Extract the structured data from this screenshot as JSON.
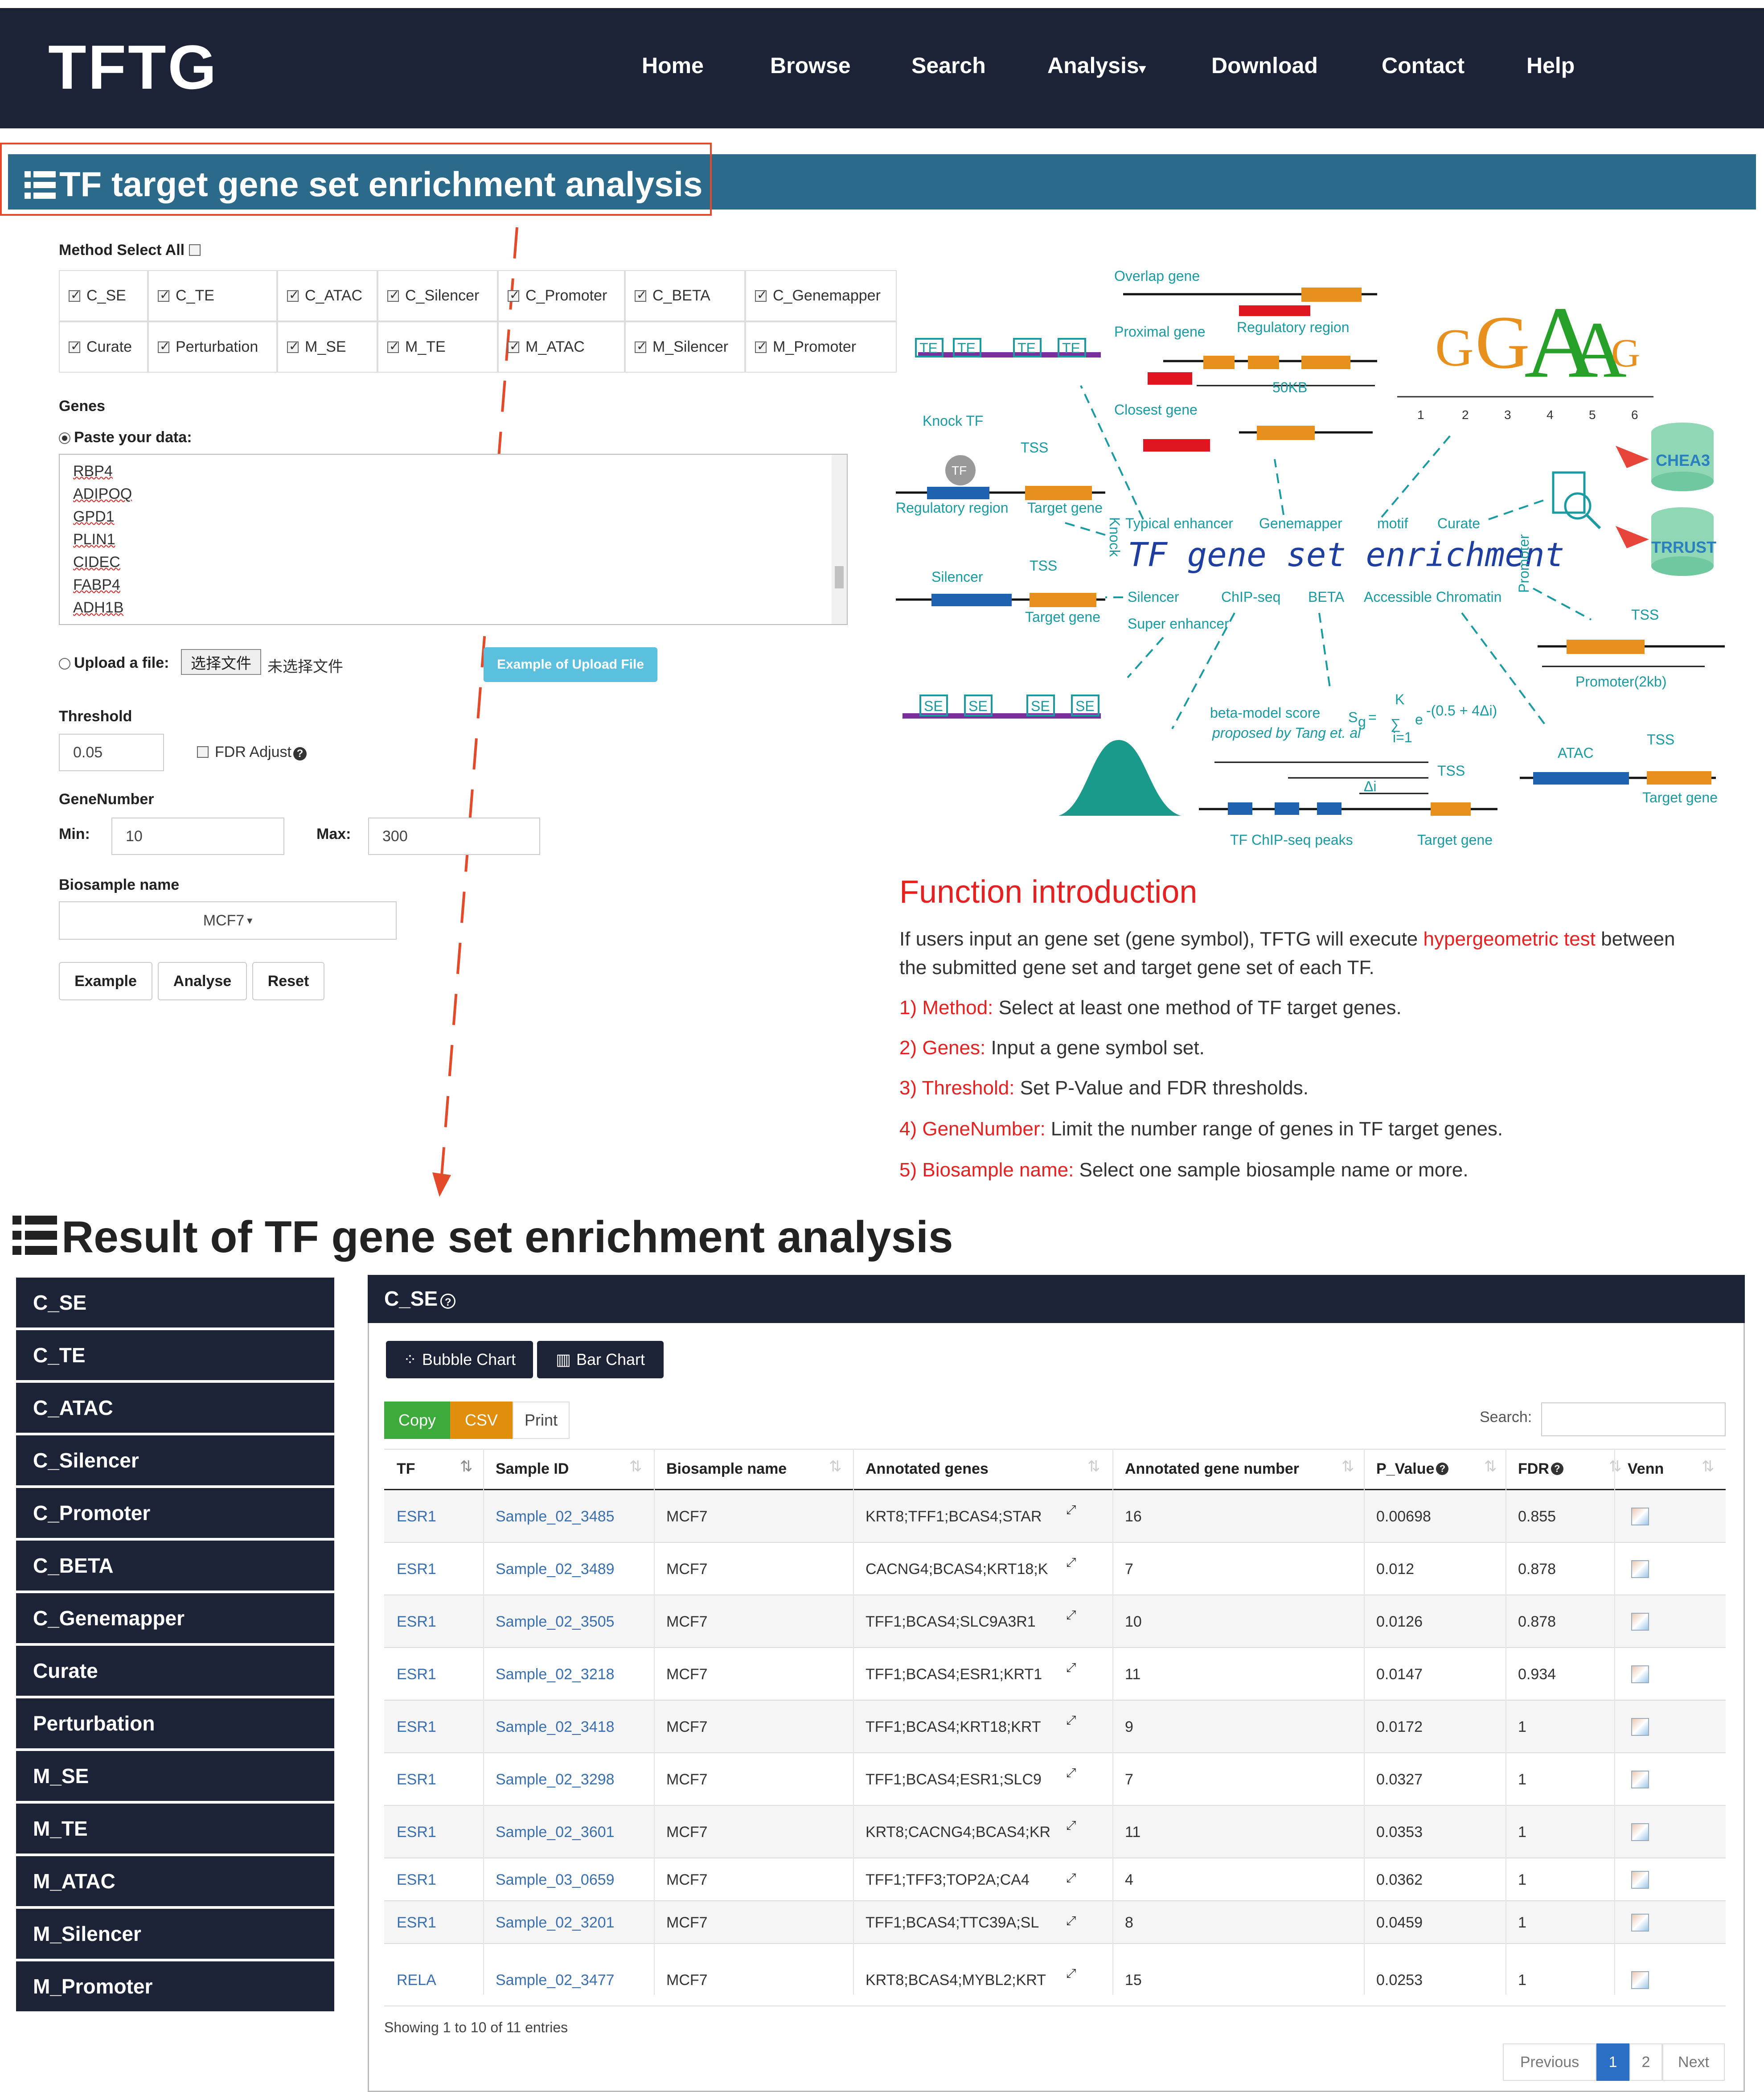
{
  "nav": {
    "brand": "TFTG",
    "links": [
      "Home",
      "Browse",
      "Search",
      "Analysis",
      "Download",
      "Contact",
      "Help"
    ]
  },
  "section": {
    "title": "TF target gene set enrichment analysis"
  },
  "form": {
    "method_label": "Method Select All",
    "methods_row1": [
      "C_SE",
      "C_TE",
      "C_ATAC",
      "C_Silencer",
      "C_Promoter",
      "C_BETA",
      "C_Genemapper"
    ],
    "methods_row2": [
      "Curate",
      "Perturbation",
      "M_SE",
      "M_TE",
      "M_ATAC",
      "M_Silencer",
      "M_Promoter"
    ],
    "genes_label": "Genes",
    "paste_label": "Paste your data:",
    "genes": [
      "RBP4",
      "ADIPOQ",
      "GPD1",
      "PLIN1",
      "CIDEC",
      "FABP4",
      "ADH1B"
    ],
    "upload_label": "Upload a file:",
    "choose_file": "选择文件",
    "no_file": "未选择文件",
    "example_upload": "Example of Upload File",
    "threshold_label": "Threshold",
    "threshold_value": "0.05",
    "fdr_label": "FDR Adjust",
    "genenumber_label": "GeneNumber",
    "min_label": "Min:",
    "min_value": "10",
    "max_label": "Max:",
    "max_value": "300",
    "biosample_label": "Biosample name",
    "biosample_value": "MCF7",
    "buttons": [
      "Example",
      "Analyse",
      "Reset"
    ]
  },
  "diagram": {
    "labels": {
      "overlap": "Overlap gene",
      "proximal": "Proximal gene",
      "regulatory": "Regulatory region",
      "kb50": "50KB",
      "closest": "Closest gene",
      "knock_tf": "Knock TF",
      "tss": "TSS",
      "regulatory_region": "Regulatory region",
      "target_gene": "Target gene",
      "typical_enhancer": "Typical enhancer",
      "genemapper": "Genemapper",
      "motif": "motif",
      "curate": "Curate",
      "knock": "Knock",
      "promoter": "Promoter",
      "title": "TF gene set enrichment",
      "silencer": "Silencer",
      "chipseq": "ChIP-seq",
      "beta": "BETA",
      "accessible": "Accessible Chromatin",
      "super_enhancer": "Super enhancer",
      "promoter2kb": "Promoter(2kb)",
      "beta_score": "beta-model score",
      "proposed": "proposed by Tang et. al",
      "atac": "ATAC",
      "peaks": "TF ChIP-seq peaks",
      "chea3": "CHEA3",
      "trrust": "TRRUST",
      "se": "SE",
      "te": "TE",
      "tf": "TF",
      "delta": "Δi",
      "formula_s": "S",
      "formula_g": "g",
      "formula_sum": "∑",
      "formula_e": "e",
      "formula_exp": "-(0.5 + 4Δi)",
      "formula_k": "K",
      "formula_i": "i=1",
      "motif_letters": [
        "G",
        "G",
        "A",
        "A",
        "G"
      ],
      "motif_positions": [
        "1",
        "2",
        "3",
        "4",
        "5",
        "6"
      ]
    }
  },
  "function_intro": {
    "title": "Function introduction",
    "p1_a": "If users input an gene set (gene symbol), TFTG will execute ",
    "p1_b": "hypergeometric test",
    "p1_c": " between",
    "p1_d": "the submitted gene set and target gene set of each TF.",
    "items": [
      {
        "key": "1) Method:",
        "text": " Select at least one method of TF target genes."
      },
      {
        "key": "2) Genes:",
        "text": " Input a gene symbol set."
      },
      {
        "key": "3) Threshold:",
        "text": " Set P-Value and FDR thresholds."
      },
      {
        "key": "4) GeneNumber:",
        "text": " Limit the number range of genes in TF target genes."
      },
      {
        "key": "5) Biosample name:",
        "text": " Select one sample biosample name or more."
      }
    ]
  },
  "result": {
    "title": "Result of TF gene set enrichment analysis",
    "sidebar": [
      "C_SE",
      "C_TE",
      "C_ATAC",
      "C_Silencer",
      "C_Promoter",
      "C_BETA",
      "C_Genemapper",
      "Curate",
      "Perturbation",
      "M_SE",
      "M_TE",
      "M_ATAC",
      "M_Silencer",
      "M_Promoter"
    ],
    "panel_title": "C_SE",
    "bubble_chart": "Bubble Chart",
    "bar_chart": "Bar Chart",
    "copy": "Copy",
    "csv": "CSV",
    "print": "Print",
    "search_label": "Search:",
    "columns": [
      "TF",
      "Sample ID",
      "Biosample name",
      "Annotated genes",
      "Annotated gene number",
      "P_Value",
      "FDR",
      "Venn"
    ],
    "rows": [
      [
        "ESR1",
        "Sample_02_3485",
        "MCF7",
        "KRT8;TFF1;BCAS4;STAR",
        "16",
        "0.00698",
        "0.855"
      ],
      [
        "ESR1",
        "Sample_02_3489",
        "MCF7",
        "CACNG4;BCAS4;KRT18;K",
        "7",
        "0.012",
        "0.878"
      ],
      [
        "ESR1",
        "Sample_02_3505",
        "MCF7",
        "TFF1;BCAS4;SLC9A3R1",
        "10",
        "0.0126",
        "0.878"
      ],
      [
        "ESR1",
        "Sample_02_3218",
        "MCF7",
        "TFF1;BCAS4;ESR1;KRT1",
        "11",
        "0.0147",
        "0.934"
      ],
      [
        "ESR1",
        "Sample_02_3418",
        "MCF7",
        "TFF1;BCAS4;KRT18;KRT",
        "9",
        "0.0172",
        "1"
      ],
      [
        "ESR1",
        "Sample_02_3298",
        "MCF7",
        "TFF1;BCAS4;ESR1;SLC9",
        "7",
        "0.0327",
        "1"
      ],
      [
        "ESR1",
        "Sample_02_3601",
        "MCF7",
        "KRT8;CACNG4;BCAS4;KR",
        "11",
        "0.0353",
        "1"
      ],
      [
        "ESR1",
        "Sample_03_0659",
        "MCF7",
        "TFF1;TFF3;TOP2A;CA4",
        "4",
        "0.0362",
        "1"
      ],
      [
        "ESR1",
        "Sample_02_3201",
        "MCF7",
        "TFF1;BCAS4;TTC39A;SL",
        "8",
        "0.0459",
        "1"
      ],
      [
        "RELA",
        "Sample_02_3477",
        "MCF7",
        "KRT8;BCAS4;MYBL2;KRT",
        "15",
        "0.0253",
        "1"
      ]
    ],
    "showing": "Showing 1 to 10 of 11 entries",
    "pagination": [
      "Previous",
      "1",
      "2",
      "Next"
    ]
  },
  "colors": {
    "nav_bg": "#1d2336",
    "section_bg": "#2b6a8a",
    "accent_red": "#e52222",
    "diagram_teal": "#1a9ba2",
    "copy_green": "#3cab3c",
    "csv_orange": "#e08e0b",
    "page_active": "#2a6fc4"
  }
}
